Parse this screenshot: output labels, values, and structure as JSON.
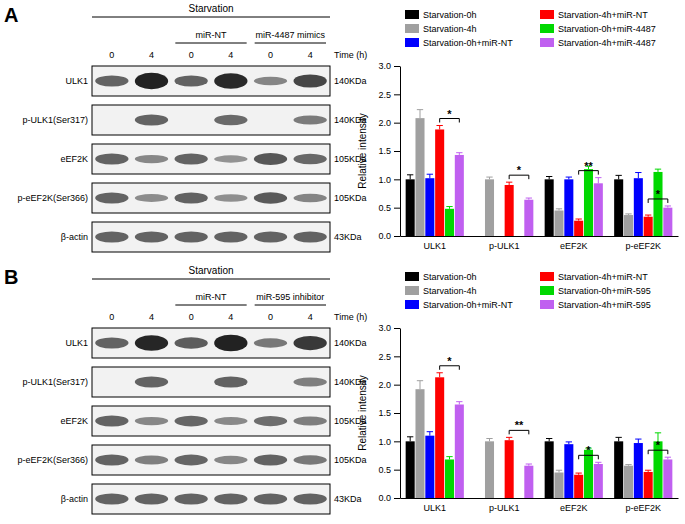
{
  "chart_data": [
    {
      "type": "bar",
      "categories": [
        "ULK1",
        "p-ULK1",
        "eEF2K",
        "p-eEF2K"
      ],
      "y_label": "Relative intensity",
      "ylim": [
        0,
        3
      ],
      "yticks": [
        {
          "value": 0,
          "label": "0.0"
        },
        {
          "value": 0.5,
          "label": "0.5"
        },
        {
          "value": 1,
          "label": "1.0"
        },
        {
          "value": 1.5,
          "label": "1.5"
        },
        {
          "value": 2,
          "label": "2.0"
        },
        {
          "value": 2.5,
          "label": "2.5"
        },
        {
          "value": 3,
          "label": "3.0"
        }
      ],
      "legend": "top",
      "series": [
        {
          "name": "Starvation-0h",
          "color": "#000000",
          "values": [
            1.0,
            0,
            1.0,
            1.0
          ],
          "errors": [
            0.08,
            null,
            0.05,
            0.07
          ]
        },
        {
          "name": "Starvation-4h",
          "color": "#a0a0a0",
          "values": [
            2.08,
            1.0,
            0.45,
            0.37
          ],
          "errors": [
            0.15,
            0.04,
            0.03,
            0.02
          ]
        },
        {
          "name": "Starvation-0h+miR-NT",
          "color": "#0000fe",
          "values": [
            1.02,
            0,
            1.0,
            1.02
          ],
          "errors": [
            0.07,
            null,
            0.04,
            0.1
          ]
        },
        {
          "name": "Starvation-4h+miR-NT",
          "color": "#fe0000",
          "values": [
            1.88,
            0.9,
            0.27,
            0.34
          ],
          "errors": [
            0.07,
            0.05,
            0.03,
            0.03
          ]
        },
        {
          "name": "Starvation-0h+miR-4487",
          "color": "#00d800",
          "values": [
            0.48,
            0,
            1.18,
            1.13
          ],
          "errors": [
            0.04,
            null,
            0.05,
            0.05
          ]
        },
        {
          "name": "Starvation-4h+miR-4487",
          "color": "#c060f0",
          "values": [
            1.43,
            0.64,
            0.93,
            0.5
          ],
          "errors": [
            0.04,
            0.03,
            0.1,
            0.03
          ]
        }
      ],
      "annotations": [
        {
          "text": "*",
          "category": "ULK1",
          "between": [
            "Starvation-4h+miR-NT",
            "Starvation-4h+miR-4487"
          ]
        },
        {
          "text": "*",
          "category": "p-ULK1",
          "between": [
            "Starvation-4h+miR-NT",
            "Starvation-4h+miR-4487"
          ]
        },
        {
          "text": "**",
          "category": "eEF2K",
          "between": [
            "Starvation-4h+miR-NT",
            "Starvation-4h+miR-4487"
          ]
        },
        {
          "text": "*",
          "category": "p-eEF2K",
          "between": [
            "Starvation-4h+miR-NT",
            "Starvation-4h+miR-4487"
          ]
        }
      ]
    },
    {
      "type": "bar",
      "categories": [
        "ULK1",
        "p-ULK1",
        "eEF2K",
        "p-eEF2K"
      ],
      "y_label": "Relative intensity",
      "ylim": [
        0,
        3
      ],
      "yticks": [
        {
          "value": 0,
          "label": "0.0"
        },
        {
          "value": 0.5,
          "label": "0.5"
        },
        {
          "value": 1,
          "label": "1.0"
        },
        {
          "value": 1.5,
          "label": "1.5"
        },
        {
          "value": 2,
          "label": "2.0"
        },
        {
          "value": 2.5,
          "label": "2.5"
        },
        {
          "value": 3,
          "label": "3.0"
        }
      ],
      "legend": "top",
      "series": [
        {
          "name": "Starvation-0h",
          "color": "#000000",
          "values": [
            1.0,
            0,
            1.0,
            1.0
          ],
          "errors": [
            0.08,
            null,
            0.05,
            0.07
          ]
        },
        {
          "name": "Starvation-4h",
          "color": "#a0a0a0",
          "values": [
            1.92,
            1.0,
            0.45,
            0.57
          ],
          "errors": [
            0.15,
            0.05,
            0.04,
            0.02
          ]
        },
        {
          "name": "Starvation-0h+miR-NT",
          "color": "#0000fe",
          "values": [
            1.1,
            0,
            0.95,
            0.97
          ],
          "errors": [
            0.07,
            null,
            0.04,
            0.07
          ]
        },
        {
          "name": "Starvation-4h+miR-NT",
          "color": "#fe0000",
          "values": [
            2.13,
            1.02,
            0.41,
            0.46
          ],
          "errors": [
            0.08,
            0.05,
            0.03,
            0.03
          ]
        },
        {
          "name": "Starvation-0h+miR-595",
          "color": "#00d800",
          "values": [
            0.68,
            0,
            0.85,
            1.0
          ],
          "errors": [
            0.05,
            null,
            0.03,
            0.15
          ]
        },
        {
          "name": "Starvation-4h+miR-595",
          "color": "#c060f0",
          "values": [
            1.65,
            0.57,
            0.6,
            0.68
          ],
          "errors": [
            0.05,
            0.03,
            0.03,
            0.04
          ]
        }
      ],
      "annotations": [
        {
          "text": "*",
          "category": "ULK1",
          "between": [
            "Starvation-4h+miR-NT",
            "Starvation-4h+miR-595"
          ]
        },
        {
          "text": "**",
          "category": "p-ULK1",
          "between": [
            "Starvation-4h+miR-NT",
            "Starvation-4h+miR-595"
          ]
        },
        {
          "text": "*",
          "category": "eEF2K",
          "between": [
            "Starvation-4h+miR-NT",
            "Starvation-4h+miR-595"
          ]
        },
        {
          "text": "*",
          "category": "p-eEF2K",
          "between": [
            "Starvation-4h+miR-NT",
            "Starvation-4h+miR-595"
          ]
        }
      ]
    }
  ],
  "blots": [
    {
      "panel": "A",
      "header": "Starvation",
      "groups": [
        null,
        "miR-NT",
        "miR-4487 mimics"
      ],
      "lanes": [
        "0",
        "4",
        "0",
        "4",
        "0",
        "4"
      ],
      "time_label": "Time (h)",
      "rows": [
        {
          "label": "ULK1",
          "size": "140KDa"
        },
        {
          "label": "p-ULK1(Ser317)",
          "size": "140KDa"
        },
        {
          "label": "eEF2K",
          "size": "105KDa"
        },
        {
          "label": "p-eEF2K(Ser366)",
          "size": "105KDa"
        },
        {
          "label": "β-actin",
          "size": "43KDa"
        }
      ]
    },
    {
      "panel": "B",
      "header": "Starvation",
      "groups": [
        null,
        "miR-NT",
        "miR-595 inhibitor"
      ],
      "lanes": [
        "0",
        "4",
        "0",
        "4",
        "0",
        "4"
      ],
      "time_label": "Time (h)",
      "rows": [
        {
          "label": "ULK1",
          "size": "140KDa"
        },
        {
          "label": "p-ULK1(Ser317)",
          "size": "140KDa"
        },
        {
          "label": "eEF2K",
          "size": "105KDa"
        },
        {
          "label": "p-eEF2K(Ser366)",
          "size": "105KDa"
        },
        {
          "label": "β-actin",
          "size": "43KDa"
        }
      ]
    }
  ]
}
